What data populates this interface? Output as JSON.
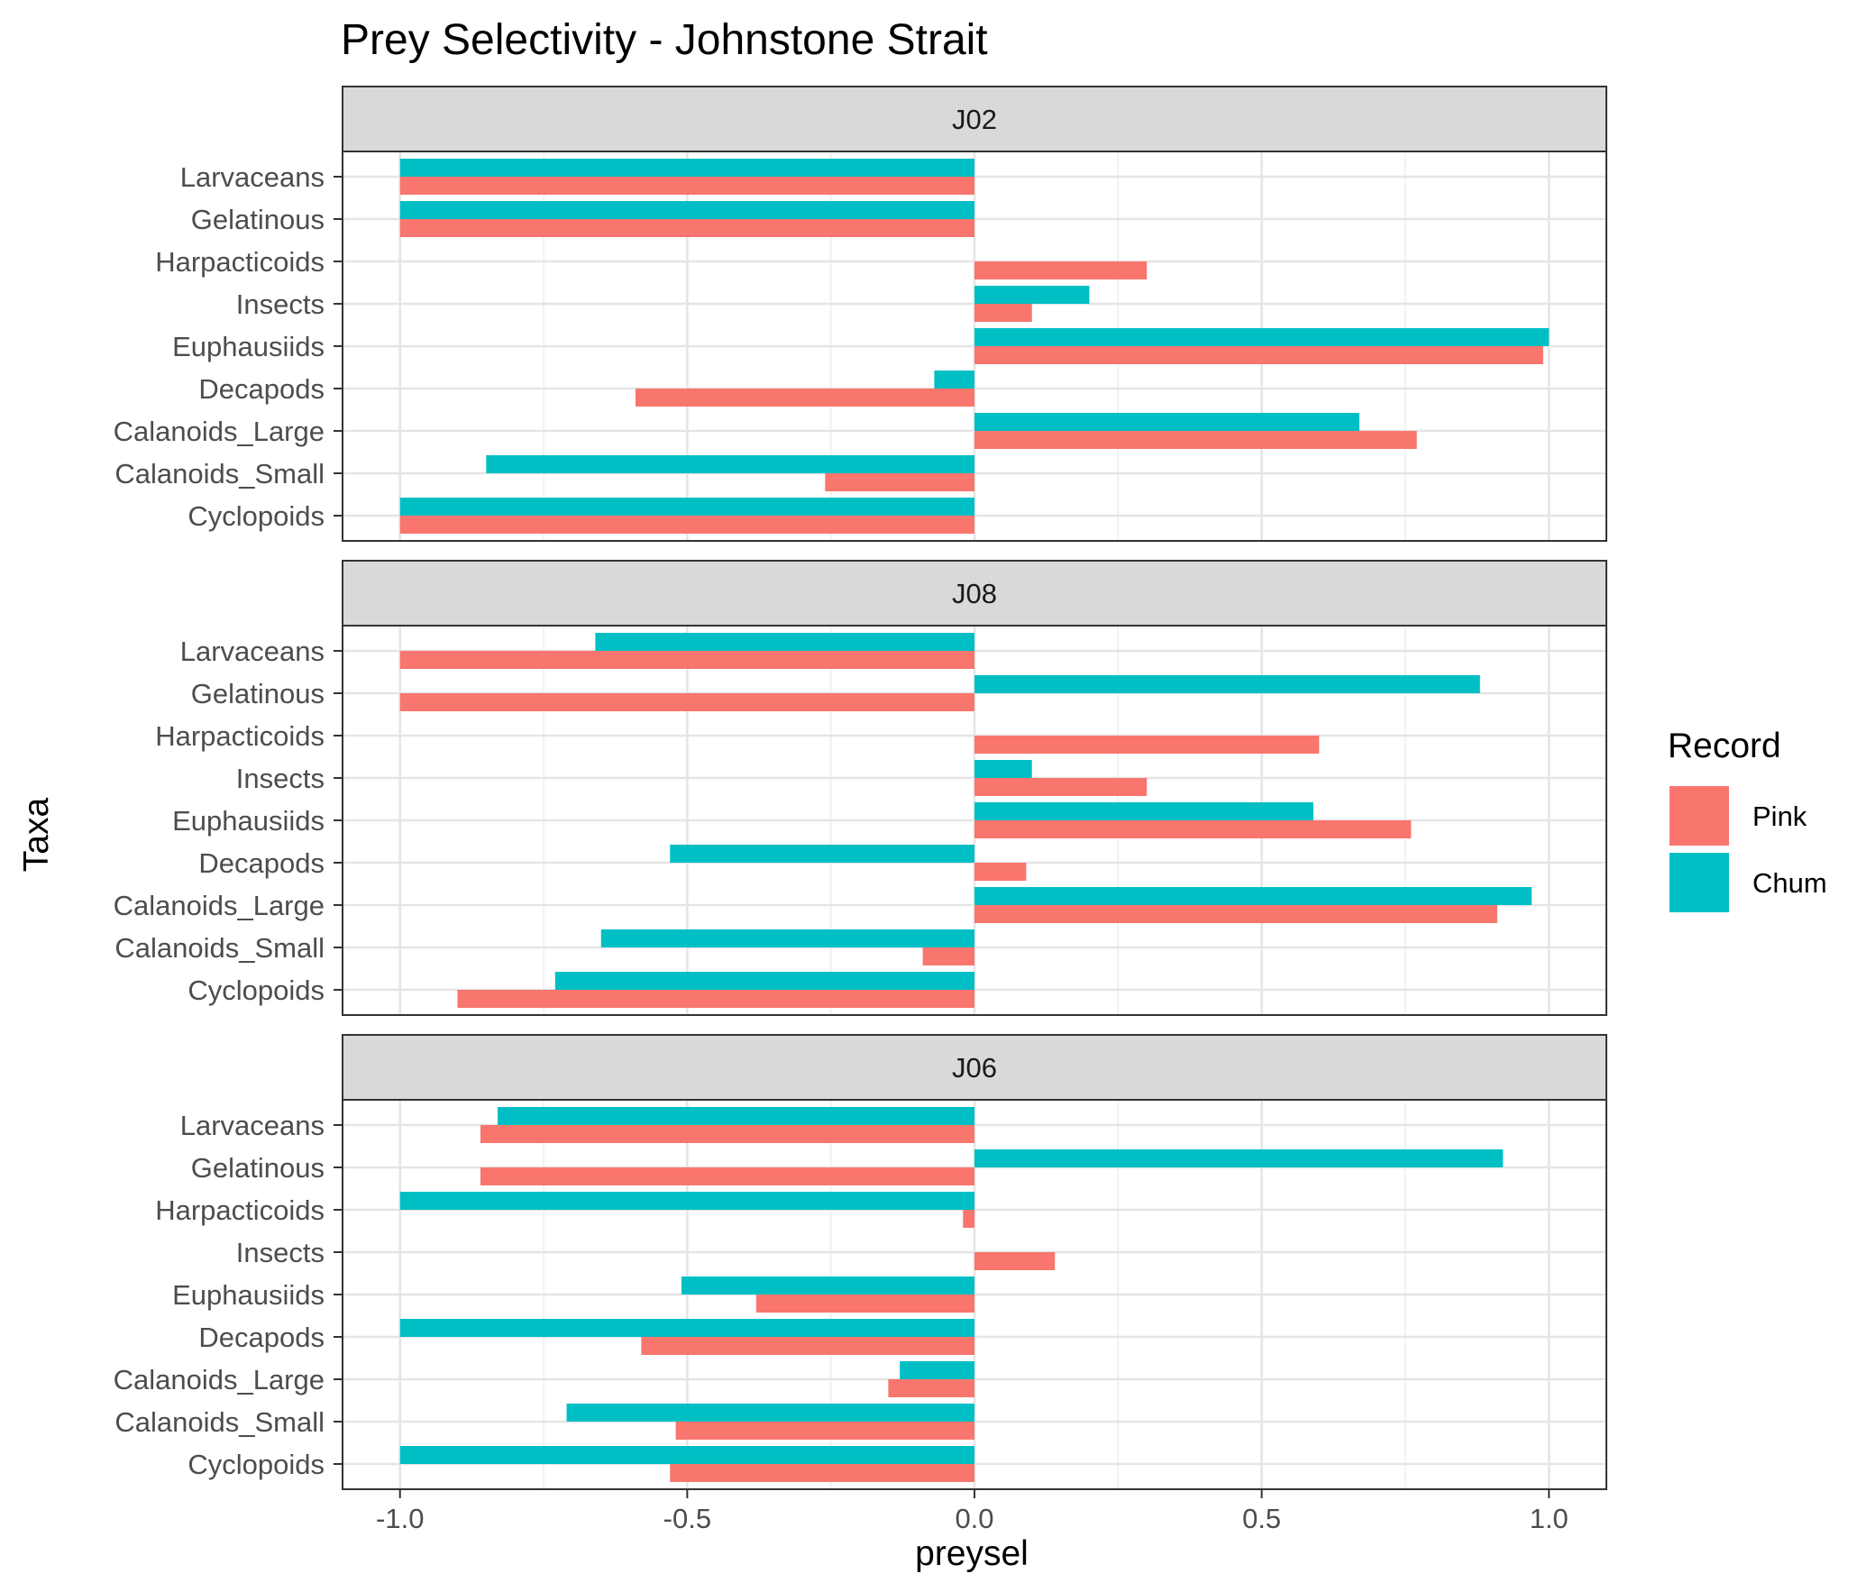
{
  "chart_data": {
    "type": "bar",
    "orientation": "horizontal",
    "title": "Prey Selectivity - Johnstone Strait",
    "xlabel": "preysel",
    "ylabel": "Taxa",
    "xlim": [
      -1.1,
      1.1
    ],
    "xticks": [
      -1.0,
      -0.5,
      0.0,
      0.5,
      1.0
    ],
    "xtick_labels": [
      "-1.0",
      "-0.5",
      "0.0",
      "0.5",
      "1.0"
    ],
    "grid": true,
    "legend": {
      "title": "Record",
      "position": "right",
      "entries": [
        {
          "name": "Pink",
          "color": "#F8766D"
        },
        {
          "name": "Chum",
          "color": "#00BFC4"
        }
      ]
    },
    "categories": [
      "Larvaceans",
      "Gelatinous",
      "Harpacticoids",
      "Insects",
      "Euphausiids",
      "Decapods",
      "Calanoids_Large",
      "Calanoids_Small",
      "Cyclopoids"
    ],
    "facets": [
      {
        "label": "J02",
        "series": [
          {
            "name": "Pink",
            "values": [
              -1.0,
              -1.0,
              0.3,
              0.1,
              0.99,
              -0.59,
              0.77,
              -0.26,
              -1.0
            ]
          },
          {
            "name": "Chum",
            "values": [
              -1.0,
              -1.0,
              null,
              0.2,
              1.0,
              -0.07,
              0.67,
              -0.85,
              -1.0
            ]
          }
        ]
      },
      {
        "label": "J08",
        "series": [
          {
            "name": "Pink",
            "values": [
              -1.0,
              -1.0,
              0.6,
              0.3,
              0.76,
              0.09,
              0.91,
              -0.09,
              -0.9
            ]
          },
          {
            "name": "Chum",
            "values": [
              -0.66,
              0.88,
              null,
              0.1,
              0.59,
              -0.53,
              0.97,
              -0.65,
              -0.73
            ]
          }
        ]
      },
      {
        "label": "J06",
        "series": [
          {
            "name": "Pink",
            "values": [
              -0.86,
              -0.86,
              -0.02,
              0.14,
              -0.38,
              -0.58,
              -0.15,
              -0.52,
              -0.53
            ]
          },
          {
            "name": "Chum",
            "values": [
              -0.83,
              0.92,
              -1.0,
              null,
              -0.51,
              -1.0,
              -0.13,
              -0.71,
              -1.0
            ]
          }
        ]
      }
    ]
  }
}
